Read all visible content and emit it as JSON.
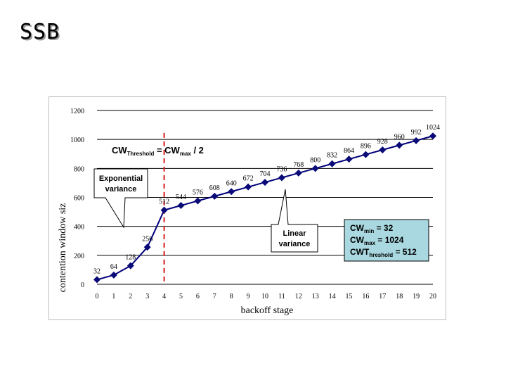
{
  "slide": {
    "title": "SSB"
  },
  "colors": {
    "series_line": "#00007a",
    "marker": "#0a0a78",
    "threshold_line": "#d81e1e",
    "info_box_fill": "#a9d8e0",
    "grid": "#000000"
  },
  "annotations": {
    "threshold_formula": {
      "prefix": "CW",
      "sub": "Threshold",
      "mid": " = CW",
      "sub2": "max",
      "suffix": " / 2"
    },
    "exponential": [
      "Exponential",
      "variance"
    ],
    "linear": [
      "Linear",
      "variance"
    ],
    "info_box": [
      {
        "main": "CW",
        "sub": "min",
        "rest": " = 32"
      },
      {
        "main": "CW",
        "sub": "max",
        "rest": " = 1024"
      },
      {
        "main": "CWT",
        "sub": "hreshold",
        "rest": " = 512"
      }
    ]
  },
  "chart_data": {
    "type": "line",
    "title": "",
    "xlabel": "backoff stage",
    "ylabel": "contention window siz",
    "x": [
      0,
      1,
      2,
      3,
      4,
      5,
      6,
      7,
      8,
      9,
      10,
      11,
      12,
      13,
      14,
      15,
      16,
      17,
      18,
      19,
      20
    ],
    "series": [
      {
        "values": [
          32,
          64,
          128,
          256,
          512,
          544,
          576,
          608,
          640,
          672,
          704,
          736,
          768,
          800,
          832,
          864,
          896,
          928,
          960,
          992,
          1024
        ]
      }
    ],
    "data_labels": [
      "32",
      "64",
      "128",
      "256",
      "512",
      "544",
      "576",
      "608",
      "640",
      "672",
      "704",
      "736",
      "768",
      "800",
      "832",
      "864",
      "896",
      "928",
      "960",
      "992",
      "1024"
    ],
    "xlim": [
      0,
      20
    ],
    "ylim": [
      0,
      1200
    ],
    "yticks": [
      0,
      200,
      400,
      600,
      800,
      1000,
      1200
    ],
    "grid": "horizontal",
    "threshold_x": 4
  }
}
